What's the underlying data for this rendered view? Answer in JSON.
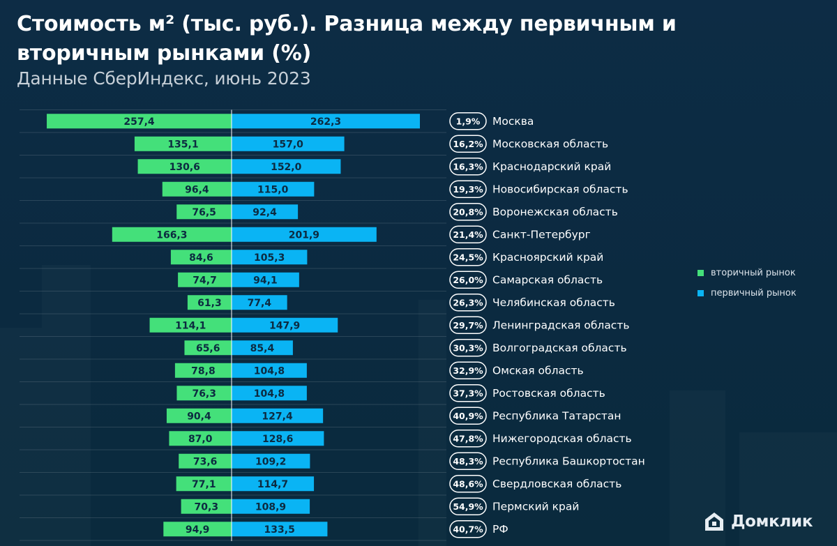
{
  "header": {
    "title": "Стоимость м² (тыс. руб.). Разница между первичным и вторичным рынками (%)",
    "subtitle": "Данные СберИндекс, июнь 2023"
  },
  "colors": {
    "secondary": "#44e07a",
    "primary": "#0ab4f4",
    "background": "#0c2b43",
    "pill_border": "#ffffff"
  },
  "legend": {
    "secondary_label": "вторичный рынок",
    "primary_label": "первичный рынок"
  },
  "brand": {
    "name": "Домклик",
    "icon": "home-icon"
  },
  "chart_data": {
    "type": "bar",
    "orientation": "horizontal-diverging",
    "categories": [
      "Москва",
      "Московская область",
      "Краснодарский край",
      "Новосибирская область",
      "Воронежская область",
      "Санкт-Петербург",
      "Красноярский край",
      "Самарская область",
      "Челябинская область",
      "Ленинградская область",
      "Волгоградская область",
      "Омская область",
      "Ростовская область",
      "Республика Татарстан",
      "Нижегородская область",
      "Республика Башкортостан",
      "Свердловская область",
      "Пермский край",
      "РФ"
    ],
    "series": [
      {
        "name": "вторичный рынок",
        "values": [
          257.4,
          135.1,
          130.6,
          96.4,
          76.5,
          166.3,
          84.6,
          74.7,
          61.3,
          114.1,
          65.6,
          78.8,
          76.3,
          90.4,
          87.0,
          73.6,
          77.1,
          70.3,
          94.9
        ],
        "labels": [
          "257,4",
          "135,1",
          "130,6",
          "96,4",
          "76,5",
          "166,3",
          "84,6",
          "74,7",
          "61,3",
          "114,1",
          "65,6",
          "78,8",
          "76,3",
          "90,4",
          "87,0",
          "73,6",
          "77,1",
          "70,3",
          "94,9"
        ]
      },
      {
        "name": "первичный рынок",
        "values": [
          262.3,
          157.0,
          152.0,
          115.0,
          92.4,
          201.9,
          105.3,
          94.1,
          77.4,
          147.9,
          85.4,
          104.8,
          104.8,
          127.4,
          128.6,
          109.2,
          114.7,
          108.9,
          133.5
        ],
        "labels": [
          "262,3",
          "157,0",
          "152,0",
          "115,0",
          "92,4",
          "201,9",
          "105,3",
          "94,1",
          "77,4",
          "147,9",
          "85,4",
          "104,8",
          "104,8",
          "127,4",
          "128,6",
          "109,2",
          "114,7",
          "108,9",
          "133,5"
        ]
      }
    ],
    "difference_labels": [
      "1,9%",
      "16,2%",
      "16,3%",
      "19,3%",
      "20,8%",
      "21,4%",
      "24,5%",
      "26,0%",
      "26,3%",
      "29,7%",
      "30,3%",
      "32,9%",
      "37,3%",
      "40,9%",
      "47,8%",
      "48,3%",
      "48,6%",
      "54,9%",
      "40,7%"
    ],
    "grid": true,
    "legend_position": "right"
  }
}
